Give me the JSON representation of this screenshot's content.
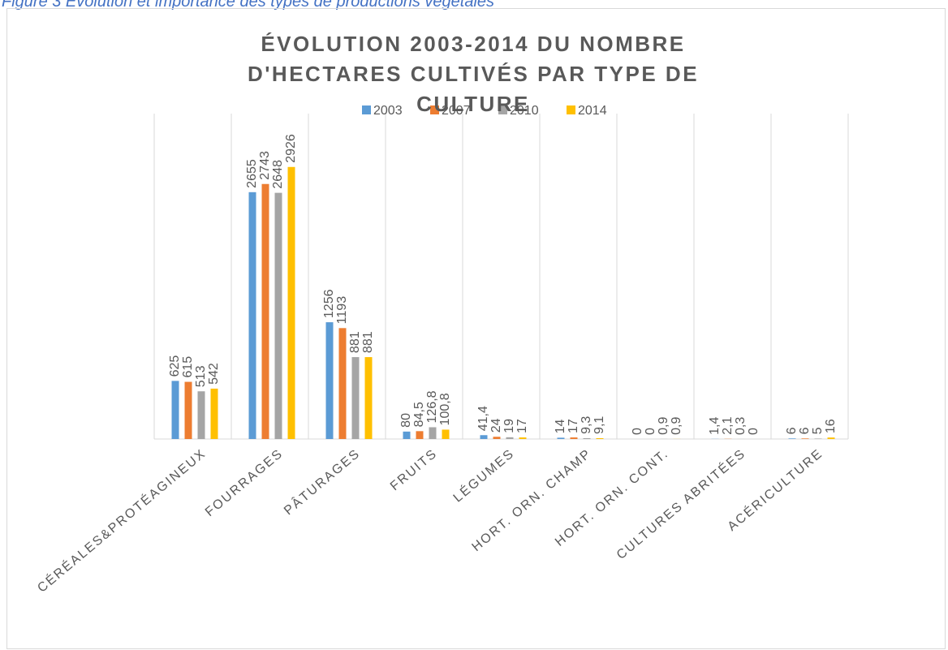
{
  "caption": "Figure 3 Évolution et importance des types de productions végétales",
  "chart_data": {
    "type": "bar",
    "title": "ÉVOLUTION 2003-2014 DU NOMBRE D'HECTARES CULTIVÉS PAR TYPE DE CULTURE",
    "categories": [
      "CÉRÉALES&PROTÉAGINEUX",
      "FOURRAGES",
      "PÂTURAGES",
      "FRUITS",
      "LÉGUMES",
      "HORT. ORN. CHAMP",
      "HORT. ORN. CONT.",
      "CULTURES ABRITÉES",
      "ACÉRICULTURE"
    ],
    "series": [
      {
        "name": "2003",
        "color": "#5b9bd5",
        "values": [
          625,
          2655,
          1256,
          80,
          41.4,
          14,
          0,
          1.4,
          6
        ],
        "value_labels": [
          "625",
          "2655",
          "1256",
          "80",
          "41,4",
          "14",
          "0",
          "1,4",
          "6"
        ]
      },
      {
        "name": "2007",
        "color": "#ed7d31",
        "values": [
          615,
          2743,
          1193,
          84.5,
          24,
          17,
          0,
          2.1,
          6
        ],
        "value_labels": [
          "615",
          "2743",
          "1193",
          "84,5",
          "24",
          "17",
          "0",
          "2,1",
          "6"
        ]
      },
      {
        "name": "2010",
        "color": "#a5a5a5",
        "values": [
          513,
          2648,
          881,
          126.8,
          19,
          9.3,
          0.9,
          0.3,
          5
        ],
        "value_labels": [
          "513",
          "2648",
          "881",
          "126,8",
          "19",
          "9,3",
          "0,9",
          "0,3",
          "5"
        ]
      },
      {
        "name": "2014",
        "color": "#ffc000",
        "values": [
          542,
          2926,
          881,
          100.8,
          17,
          9.1,
          0.9,
          0,
          16
        ],
        "value_labels": [
          "542",
          "2926",
          "881",
          "100,8",
          "17",
          "9,1",
          "0,9",
          "0",
          "16"
        ]
      }
    ],
    "ylim": [
      0,
      3500
    ],
    "legend": "top",
    "grid": true
  }
}
